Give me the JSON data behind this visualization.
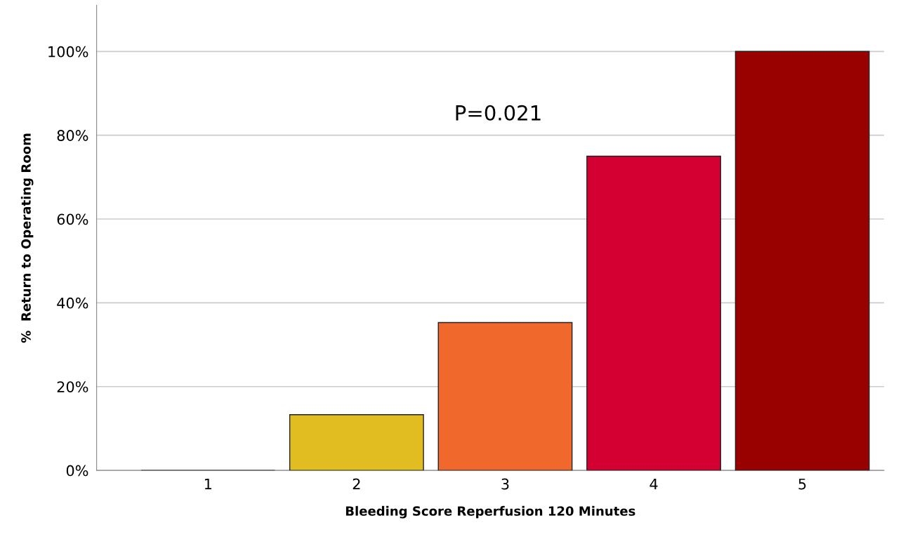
{
  "chart_data": {
    "type": "bar",
    "xlabel": "Bleeding Score Reperfusion 120 Minutes",
    "ylabel": "%  Return to Operating Room",
    "categories": [
      "1",
      "2",
      "3",
      "4",
      "5"
    ],
    "values": [
      0,
      13.3,
      35.3,
      75,
      100
    ],
    "colors": [
      "#222222",
      "#e2bd22",
      "#f0682c",
      "#d50032",
      "#990000"
    ],
    "ylim": [
      0,
      111
    ],
    "yticks": [
      {
        "value": 0,
        "label": "0%"
      },
      {
        "value": 20,
        "label": "20%"
      },
      {
        "value": 40,
        "label": "40%"
      },
      {
        "value": 60,
        "label": "60%"
      },
      {
        "value": 80,
        "label": "80%"
      },
      {
        "value": 100,
        "label": "100%"
      }
    ],
    "grid": "y",
    "annotations": [
      "P=0.021"
    ]
  }
}
